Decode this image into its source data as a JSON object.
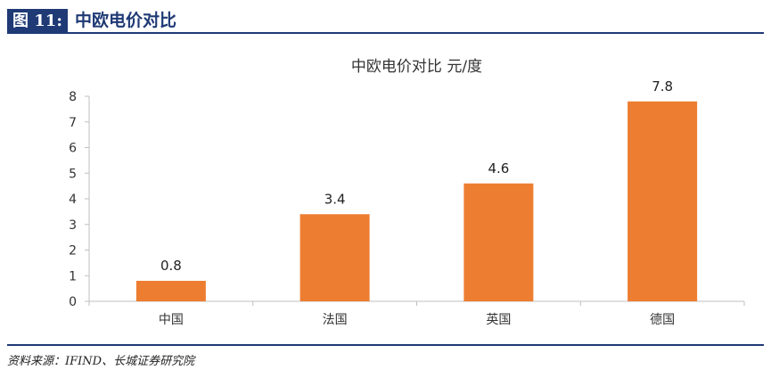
{
  "figure": {
    "label": "图 11:",
    "title": "中欧电价对比"
  },
  "source": "资料来源：IFIND、长城证券研究院",
  "colors": {
    "bar": "#ed7d31",
    "header": "#1f3a75",
    "axis": "#bfbfbf"
  },
  "chart_data": {
    "type": "bar",
    "title": "中欧电价对比 元/度",
    "categories": [
      "中国",
      "法国",
      "英国",
      "德国"
    ],
    "values": [
      0.8,
      3.4,
      4.6,
      7.8
    ],
    "data_labels": [
      "0.8",
      "3.4",
      "4.6",
      "7.8"
    ],
    "ylim": [
      0,
      8
    ],
    "yticks": [
      0,
      1,
      2,
      3,
      4,
      5,
      6,
      7,
      8
    ],
    "grid": false,
    "legend": "none"
  }
}
